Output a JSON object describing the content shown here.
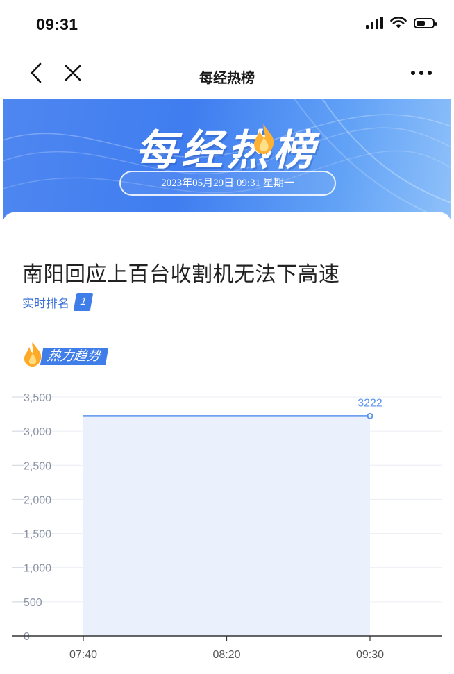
{
  "status_bar": {
    "time": "09:31"
  },
  "nav": {
    "title": "每经热榜"
  },
  "banner": {
    "title": "每经热榜",
    "date": "2023年05月29日 09:31 星期一"
  },
  "topic": {
    "title": "南阳回应上百台收割机无法下高速",
    "rank_label": "实时排名",
    "rank_value": "1"
  },
  "trend": {
    "label": "热力趋势"
  },
  "colors": {
    "accent": "#3f7de8",
    "line": "#5b93ee",
    "area": "#eaf1fd"
  },
  "chart_data": {
    "type": "area",
    "x": [
      "07:40",
      "08:20",
      "09:30"
    ],
    "x_ticks": [
      "07:40",
      "08:20",
      "09:30"
    ],
    "values": [
      3222,
      3222,
      3222
    ],
    "y_ticks": [
      "0",
      "500",
      "1,000",
      "1,500",
      "2,000",
      "2,500",
      "3,000",
      "3,500"
    ],
    "ylim": [
      0,
      3500
    ],
    "point_label": "3222",
    "grid": true
  }
}
